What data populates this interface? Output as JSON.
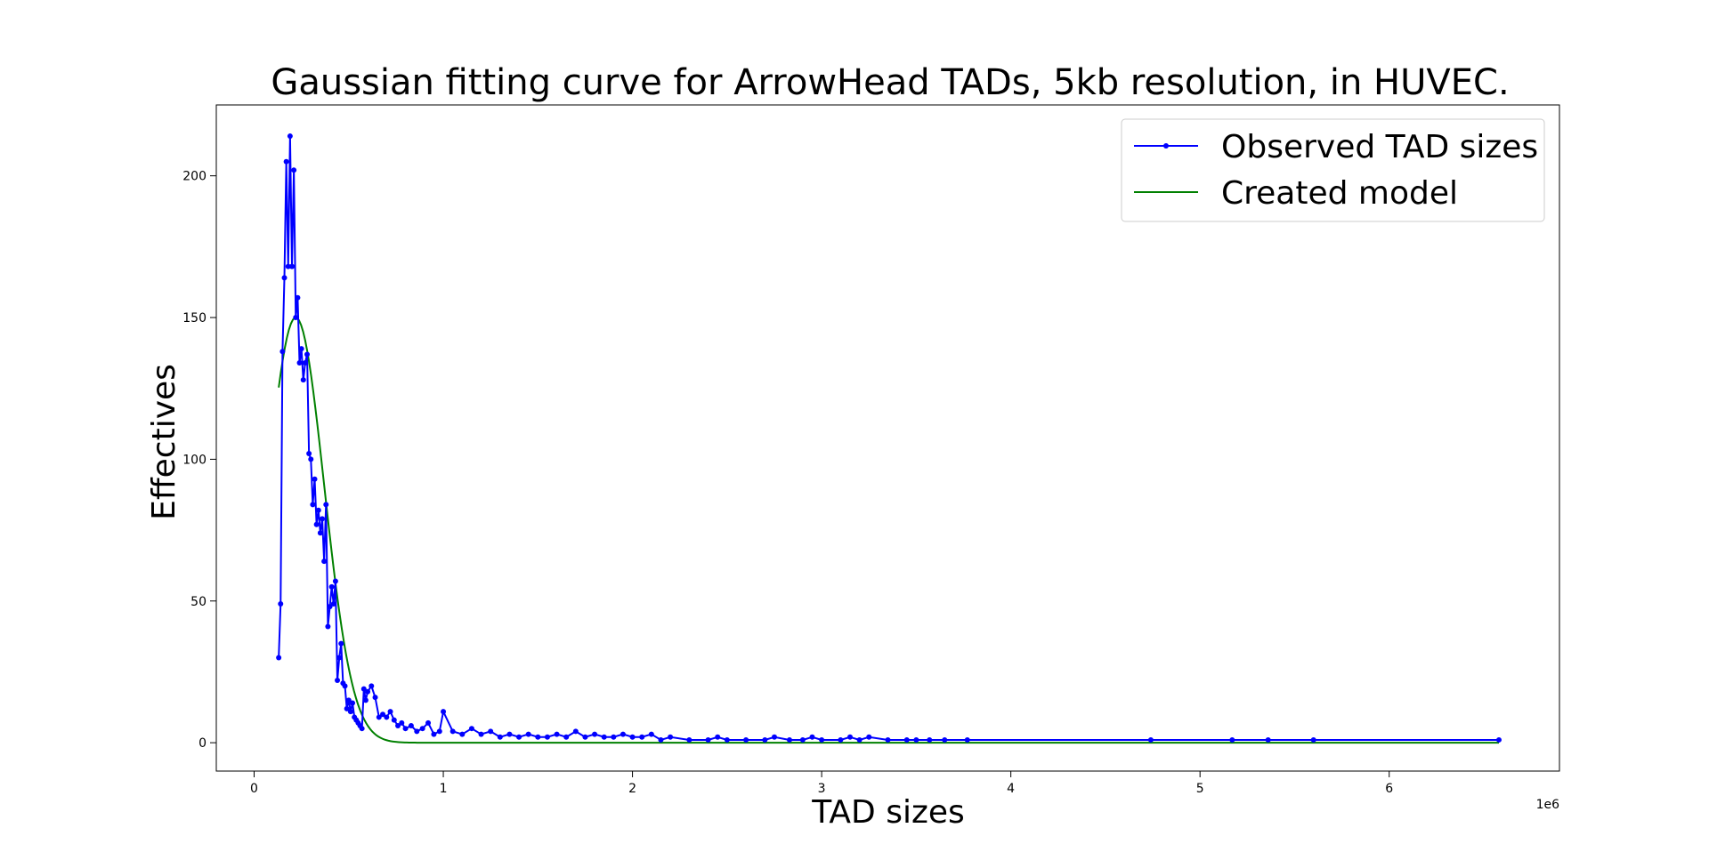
{
  "chart_data": {
    "type": "line",
    "title": "Gaussian fitting curve for ArrowHead TADs, 5kb resolution, in HUVEC.",
    "xlabel": "TAD sizes",
    "ylabel": "Effectives",
    "x_offset_label": "1e6",
    "xlim": [
      -200000,
      6900000
    ],
    "ylim": [
      -10,
      225
    ],
    "x_ticks": [
      0,
      1,
      2,
      3,
      4,
      5,
      6
    ],
    "x_tick_labels": [
      "0",
      "1",
      "2",
      "3",
      "4",
      "5",
      "6"
    ],
    "y_ticks": [
      0,
      50,
      100,
      150,
      200
    ],
    "y_tick_labels": [
      "0",
      "50",
      "100",
      "150",
      "200"
    ],
    "grid": false,
    "legend_position": "top-right",
    "series": [
      {
        "name": "Observed TAD sizes",
        "color": "#0000ff",
        "marker": "circle",
        "x": [
          130000,
          140000,
          150000,
          160000,
          170000,
          180000,
          190000,
          200000,
          210000,
          220000,
          230000,
          240000,
          250000,
          260000,
          270000,
          280000,
          290000,
          300000,
          310000,
          320000,
          330000,
          340000,
          350000,
          360000,
          370000,
          380000,
          390000,
          400000,
          410000,
          420000,
          430000,
          440000,
          450000,
          460000,
          470000,
          480000,
          490000,
          500000,
          510000,
          520000,
          530000,
          540000,
          550000,
          560000,
          570000,
          580000,
          590000,
          600000,
          620000,
          640000,
          660000,
          680000,
          700000,
          720000,
          740000,
          760000,
          780000,
          800000,
          830000,
          860000,
          890000,
          920000,
          950000,
          980000,
          1000000,
          1050000,
          1100000,
          1150000,
          1200000,
          1250000,
          1300000,
          1350000,
          1400000,
          1450000,
          1500000,
          1550000,
          1600000,
          1650000,
          1700000,
          1750000,
          1800000,
          1850000,
          1900000,
          1950000,
          2000000,
          2050000,
          2100000,
          2150000,
          2200000,
          2300000,
          2400000,
          2450000,
          2500000,
          2600000,
          2700000,
          2750000,
          2830000,
          2900000,
          2950000,
          3000000,
          3100000,
          3150000,
          3200000,
          3250000,
          3350000,
          3450000,
          3500000,
          3570000,
          3650000,
          3770000,
          4740000,
          5170000,
          5360000,
          5600000,
          6580000
        ],
        "values": [
          30,
          49,
          138,
          164,
          205,
          168,
          214,
          168,
          202,
          150,
          157,
          134,
          139,
          128,
          134,
          137,
          102,
          100,
          84,
          93,
          77,
          82,
          74,
          79,
          64,
          84,
          41,
          48,
          55,
          49,
          57,
          22,
          30,
          35,
          21,
          20,
          12,
          15,
          11,
          14,
          9,
          8,
          7,
          6,
          5,
          19,
          15,
          18,
          20,
          16,
          9,
          10,
          9,
          11,
          8,
          6,
          7,
          5,
          6,
          4,
          5,
          7,
          3,
          4,
          11,
          4,
          3,
          5,
          3,
          4,
          2,
          3,
          2,
          3,
          2,
          2,
          3,
          2,
          4,
          2,
          3,
          2,
          2,
          3,
          2,
          2,
          3,
          1,
          2,
          1,
          1,
          2,
          1,
          1,
          1,
          2,
          1,
          1,
          2,
          1,
          1,
          2,
          1,
          2,
          1,
          1,
          1,
          1,
          1,
          1,
          1,
          1,
          1,
          1,
          1
        ]
      },
      {
        "name": "Created model",
        "color": "#008000",
        "marker": "none",
        "model": {
          "amplitude": 150,
          "mean": 220000,
          "sigma": 150000
        },
        "x_range": [
          130000,
          6580000
        ]
      }
    ]
  }
}
